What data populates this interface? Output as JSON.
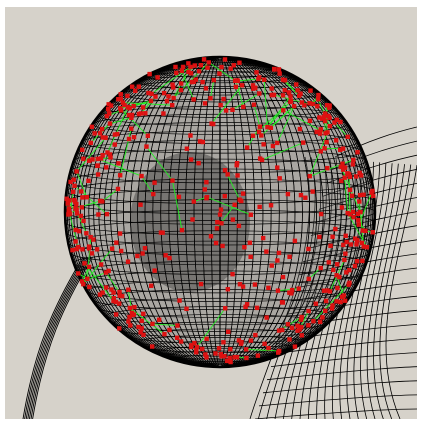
{
  "viewport": {
    "background": "#d6d2ca",
    "content": "3d-wireframe-render"
  },
  "colors": {
    "wireframe": "#000000",
    "fibers": "#22ee22",
    "nodes": "#dd1111"
  },
  "seed": 7
}
